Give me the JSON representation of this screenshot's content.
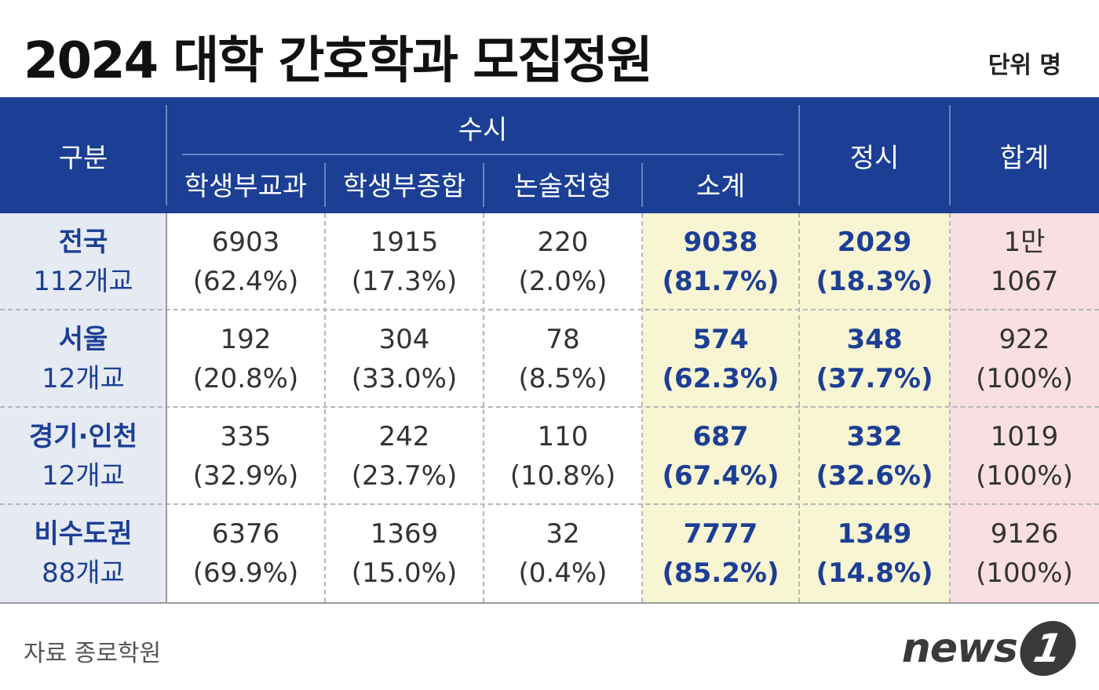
{
  "title": "2024 대학 간호학과 모집정원",
  "unit": "단위 명",
  "header": {
    "category": "구분",
    "susi": "수시",
    "cols": [
      "학생부교과",
      "학생부종합",
      "논술전형",
      "소계"
    ],
    "jeongsi": "정시",
    "total": "합계"
  },
  "rows": [
    {
      "name": "전국",
      "schools": "112개교",
      "c1": [
        "6903",
        "(62.4%)"
      ],
      "c2": [
        "1915",
        "(17.3%)"
      ],
      "c3": [
        "220",
        "(2.0%)"
      ],
      "sub": [
        "9038",
        "(81.7%)"
      ],
      "jeong": [
        "2029",
        "(18.3%)"
      ],
      "total": [
        "1만",
        "1067"
      ]
    },
    {
      "name": "서울",
      "schools": "12개교",
      "c1": [
        "192",
        "(20.8%)"
      ],
      "c2": [
        "304",
        "(33.0%)"
      ],
      "c3": [
        "78",
        "(8.5%)"
      ],
      "sub": [
        "574",
        "(62.3%)"
      ],
      "jeong": [
        "348",
        "(37.7%)"
      ],
      "total": [
        "922",
        "(100%)"
      ]
    },
    {
      "name": "경기·인천",
      "schools": "12개교",
      "c1": [
        "335",
        "(32.9%)"
      ],
      "c2": [
        "242",
        "(23.7%)"
      ],
      "c3": [
        "110",
        "(10.8%)"
      ],
      "sub": [
        "687",
        "(67.4%)"
      ],
      "jeong": [
        "332",
        "(32.6%)"
      ],
      "total": [
        "1019",
        "(100%)"
      ]
    },
    {
      "name": "비수도권",
      "schools": "88개교",
      "c1": [
        "6376",
        "(69.9%)"
      ],
      "c2": [
        "1369",
        "(15.0%)"
      ],
      "c3": [
        "32",
        "(0.4%)"
      ],
      "sub": [
        "7777",
        "(85.2%)"
      ],
      "jeong": [
        "1349",
        "(14.8%)"
      ],
      "total": [
        "9126",
        "(100%)"
      ]
    }
  ],
  "source": "자료 종로학원",
  "logo": {
    "text": "news",
    "badge": "1"
  },
  "colors": {
    "header": "#1c3f95",
    "region_bg": "#e6ebf3",
    "subtotal_bg": "#f8f5d2",
    "total_bg": "#f9dfe1",
    "accent_text": "#1c3f95"
  }
}
